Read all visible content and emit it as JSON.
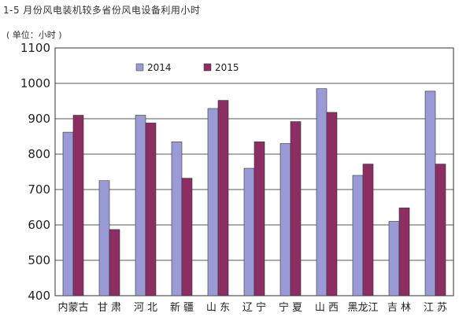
{
  "chart_data": {
    "type": "bar",
    "title": "1-5 月份风电装机较多省份风电设备利用小时",
    "unit_label": "( 单位：小时 )",
    "categories": [
      "内蒙古",
      "甘 肃",
      "河 北",
      "新 疆",
      "山 东",
      "辽 宁",
      "宁 夏",
      "山 西",
      "黑龙江",
      "吉 林",
      "江 苏"
    ],
    "series": [
      {
        "name": "2014",
        "color": "#9a9ad6",
        "values": [
          862,
          725,
          910,
          835,
          929,
          760,
          830,
          985,
          740,
          610,
          978
        ]
      },
      {
        "name": "2015",
        "color": "#8c2d63",
        "values": [
          910,
          587,
          888,
          732,
          952,
          835,
          892,
          918,
          772,
          648,
          772
        ]
      }
    ],
    "ylim": [
      400,
      1100
    ],
    "yticks": [
      400,
      500,
      600,
      700,
      800,
      900,
      1000,
      1100
    ],
    "grid": true,
    "legend_position": "top-left"
  }
}
